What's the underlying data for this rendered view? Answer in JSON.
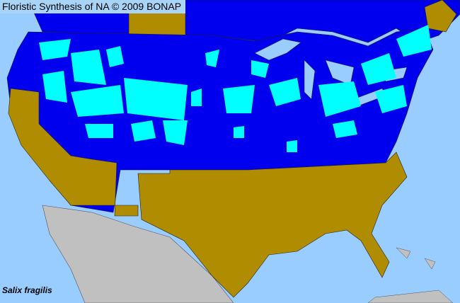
{
  "map": {
    "title": "Floristic Synthesis of NA © 2009 BONAP",
    "species": "Salix fragilis",
    "colors": {
      "water": "#99ccff",
      "present": "#0000ee",
      "present_county": "#00ffff",
      "absent_state": "#b08c00",
      "outside": "#c0c0c0"
    }
  }
}
